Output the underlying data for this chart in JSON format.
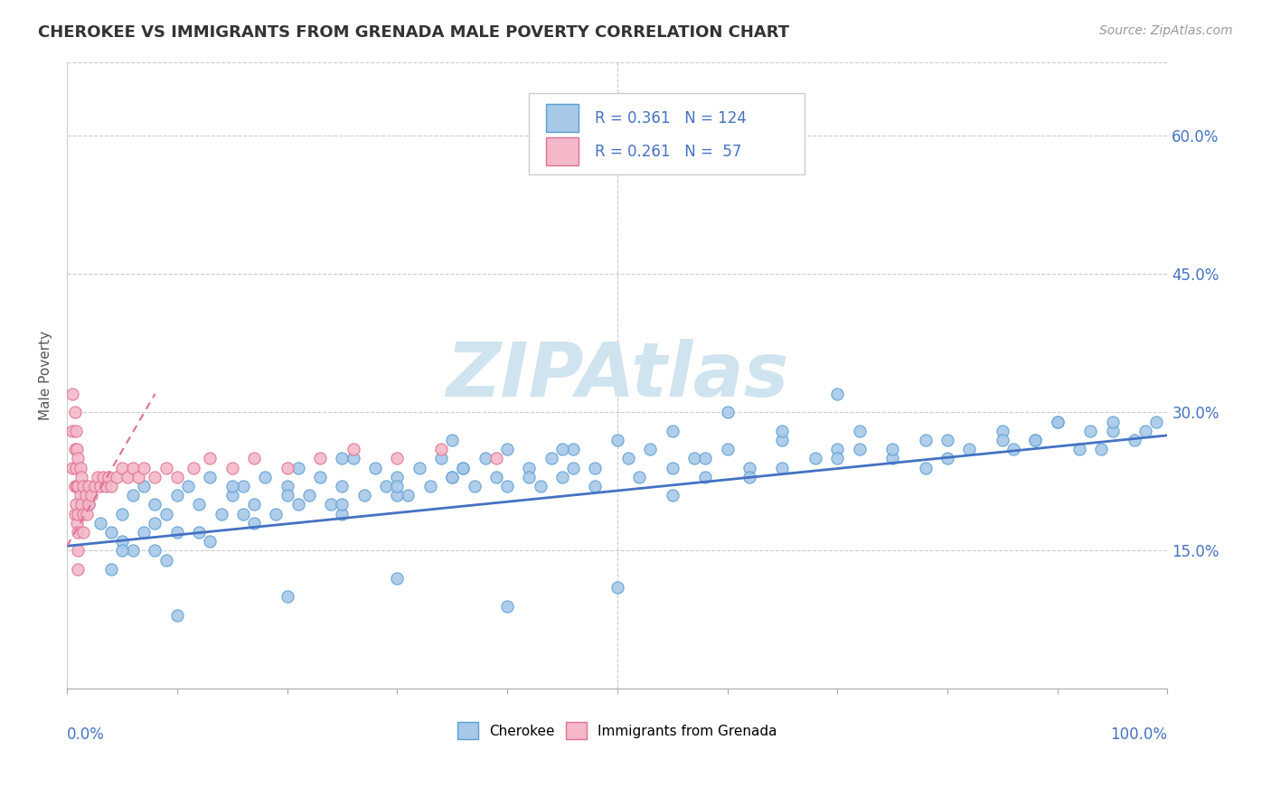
{
  "title": "CHEROKEE VS IMMIGRANTS FROM GRENADA MALE POVERTY CORRELATION CHART",
  "source": "Source: ZipAtlas.com",
  "ylabel": "Male Poverty",
  "ytick_values": [
    0.15,
    0.3,
    0.45,
    0.6
  ],
  "cherokee_color": "#a8c8e8",
  "cherokee_edge_color": "#5a9fd4",
  "grenada_color": "#f4b8c8",
  "grenada_edge_color": "#e07090",
  "trend_blue_color": "#4472c4",
  "trend_pink_color": "#e07090",
  "watermark_color": "#d0e4f0",
  "xlim": [
    0.0,
    1.0
  ],
  "ylim": [
    0.0,
    0.68
  ],
  "cherokee_x": [
    0.02,
    0.03,
    0.04,
    0.05,
    0.05,
    0.06,
    0.06,
    0.07,
    0.07,
    0.08,
    0.08,
    0.09,
    0.1,
    0.1,
    0.11,
    0.12,
    0.13,
    0.14,
    0.15,
    0.16,
    0.17,
    0.18,
    0.19,
    0.2,
    0.21,
    0.22,
    0.23,
    0.24,
    0.25,
    0.26,
    0.27,
    0.28,
    0.29,
    0.3,
    0.31,
    0.32,
    0.33,
    0.34,
    0.35,
    0.36,
    0.37,
    0.38,
    0.39,
    0.4,
    0.42,
    0.43,
    0.44,
    0.45,
    0.46,
    0.48,
    0.5,
    0.51,
    0.53,
    0.55,
    0.57,
    0.58,
    0.6,
    0.62,
    0.65,
    0.68,
    0.7,
    0.72,
    0.75,
    0.78,
    0.82,
    0.85,
    0.88,
    0.9,
    0.92,
    0.95,
    0.97,
    0.99,
    0.05,
    0.09,
    0.13,
    0.17,
    0.21,
    0.25,
    0.3,
    0.35,
    0.4,
    0.46,
    0.52,
    0.58,
    0.65,
    0.72,
    0.8,
    0.88,
    0.94,
    0.98,
    0.04,
    0.08,
    0.12,
    0.16,
    0.2,
    0.25,
    0.3,
    0.36,
    0.42,
    0.48,
    0.55,
    0.62,
    0.7,
    0.78,
    0.86,
    0.93,
    0.6,
    0.7,
    0.8,
    0.9,
    0.15,
    0.25,
    0.35,
    0.45,
    0.55,
    0.65,
    0.75,
    0.85,
    0.95,
    0.5,
    0.4,
    0.3,
    0.2,
    0.1
  ],
  "cherokee_y": [
    0.2,
    0.18,
    0.17,
    0.19,
    0.16,
    0.21,
    0.15,
    0.22,
    0.17,
    0.2,
    0.18,
    0.19,
    0.21,
    0.17,
    0.22,
    0.2,
    0.23,
    0.19,
    0.21,
    0.22,
    0.2,
    0.23,
    0.19,
    0.22,
    0.24,
    0.21,
    0.23,
    0.2,
    0.22,
    0.25,
    0.21,
    0.24,
    0.22,
    0.23,
    0.21,
    0.24,
    0.22,
    0.25,
    0.23,
    0.24,
    0.22,
    0.25,
    0.23,
    0.26,
    0.24,
    0.22,
    0.25,
    0.23,
    0.26,
    0.24,
    0.27,
    0.25,
    0.26,
    0.28,
    0.25,
    0.23,
    0.26,
    0.24,
    0.27,
    0.25,
    0.26,
    0.28,
    0.25,
    0.27,
    0.26,
    0.28,
    0.27,
    0.29,
    0.26,
    0.28,
    0.27,
    0.29,
    0.15,
    0.14,
    0.16,
    0.18,
    0.2,
    0.19,
    0.21,
    0.23,
    0.22,
    0.24,
    0.23,
    0.25,
    0.24,
    0.26,
    0.25,
    0.27,
    0.26,
    0.28,
    0.13,
    0.15,
    0.17,
    0.19,
    0.21,
    0.2,
    0.22,
    0.24,
    0.23,
    0.22,
    0.21,
    0.23,
    0.25,
    0.24,
    0.26,
    0.28,
    0.3,
    0.32,
    0.27,
    0.29,
    0.22,
    0.25,
    0.27,
    0.26,
    0.24,
    0.28,
    0.26,
    0.27,
    0.29,
    0.11,
    0.09,
    0.12,
    0.1,
    0.08
  ],
  "grenada_x": [
    0.005,
    0.005,
    0.005,
    0.007,
    0.007,
    0.007,
    0.007,
    0.008,
    0.008,
    0.008,
    0.009,
    0.009,
    0.009,
    0.01,
    0.01,
    0.01,
    0.01,
    0.01,
    0.01,
    0.012,
    0.012,
    0.013,
    0.013,
    0.015,
    0.015,
    0.015,
    0.017,
    0.018,
    0.02,
    0.02,
    0.022,
    0.025,
    0.028,
    0.03,
    0.033,
    0.035,
    0.038,
    0.04,
    0.045,
    0.05,
    0.055,
    0.06,
    0.065,
    0.07,
    0.08,
    0.09,
    0.1,
    0.115,
    0.13,
    0.15,
    0.17,
    0.2,
    0.23,
    0.26,
    0.3,
    0.34,
    0.39
  ],
  "grenada_y": [
    0.32,
    0.28,
    0.24,
    0.3,
    0.26,
    0.22,
    0.19,
    0.28,
    0.24,
    0.2,
    0.26,
    0.22,
    0.18,
    0.25,
    0.22,
    0.19,
    0.17,
    0.15,
    0.13,
    0.24,
    0.21,
    0.23,
    0.2,
    0.22,
    0.19,
    0.17,
    0.21,
    0.19,
    0.22,
    0.2,
    0.21,
    0.22,
    0.23,
    0.22,
    0.23,
    0.22,
    0.23,
    0.22,
    0.23,
    0.24,
    0.23,
    0.24,
    0.23,
    0.24,
    0.23,
    0.24,
    0.23,
    0.24,
    0.25,
    0.24,
    0.25,
    0.24,
    0.25,
    0.26,
    0.25,
    0.26,
    0.25
  ],
  "trend_blue_x0": 0.0,
  "trend_blue_y0": 0.155,
  "trend_blue_x1": 1.0,
  "trend_blue_y1": 0.275,
  "trend_pink_x0": 0.0,
  "trend_pink_y0": 0.155,
  "trend_pink_x1": 0.08,
  "trend_pink_y1": 0.32
}
